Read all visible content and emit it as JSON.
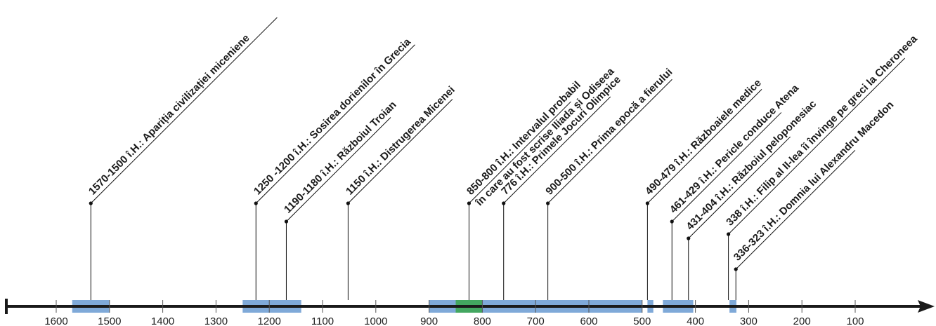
{
  "timeline": {
    "axis_ticks": [
      "1600",
      "1500",
      "1400",
      "1300",
      "1200",
      "1100",
      "1000",
      "900",
      "800",
      "700",
      "600",
      "500",
      "400",
      "300",
      "200",
      "100"
    ],
    "tick_values": [
      1600,
      1500,
      1400,
      1300,
      1200,
      1100,
      1000,
      900,
      800,
      700,
      600,
      500,
      400,
      300,
      200,
      100
    ],
    "colors": {
      "axis": "#1a1a1a",
      "period": "#7fa9d8",
      "highlight": "#43a660",
      "leader": "#111111"
    },
    "periods": [
      {
        "start": 1570,
        "end": 1500,
        "color": "period"
      },
      {
        "start": 1250,
        "end": 1140,
        "color": "period"
      },
      {
        "start": 900,
        "end": 500,
        "color": "period"
      },
      {
        "start": 850,
        "end": 800,
        "color": "highlight"
      },
      {
        "start": 490,
        "end": 479,
        "color": "period"
      },
      {
        "start": 461,
        "end": 404,
        "color": "period"
      },
      {
        "start": 336,
        "end": 323,
        "color": "period"
      }
    ],
    "events": [
      {
        "year": 1535,
        "text": "1570-1500 î.H.: Apariția civilizației miceniene"
      },
      {
        "year": 1225,
        "text": "1250 -1200 î.H.: Sosirea dorienilor în Grecia"
      },
      {
        "year": 1168,
        "text": "1190-1180 î.H.: Războiul Troian"
      },
      {
        "year": 1052,
        "text": "1150 î.H.: Distrugerea Micenei"
      },
      {
        "year": 825,
        "text": "850-800 î.H.: Intervalul probabil",
        "text2": "în care au fost scrise Iliada și Odiseea"
      },
      {
        "year": 760,
        "text": "776 î.H.: Primele Jocuri Olimpice"
      },
      {
        "year": 677,
        "text": "900-500 î.H.: Prima epocă a fierului"
      },
      {
        "year": 490,
        "text": "490-479 î.H.: Războaiele medice"
      },
      {
        "year": 444,
        "text": "461-429 î.H.: Pericle conduce Atena"
      },
      {
        "year": 413,
        "text": "431-404 î.H.: Războiul peloponesiac"
      },
      {
        "year": 338,
        "text": "338 î.H.: Filip al II-lea îi învinge pe greci la Cheroneea"
      },
      {
        "year": 324,
        "text": "336-323 î.H.: Domnia lui Alexandru Macedon"
      }
    ]
  }
}
